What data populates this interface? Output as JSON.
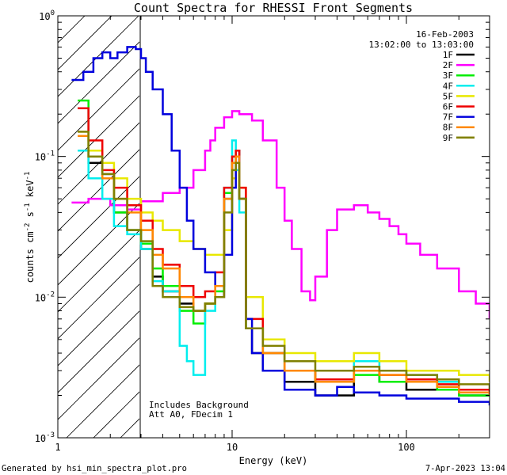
{
  "chart_data": {
    "type": "line",
    "title": "Count Spectra for RHESSI Front Segments",
    "xlabel": "Energy (keV)",
    "ylabel": "counts cm",
    "ylabel_exp1": "-2",
    "ylabel_mid": " s",
    "ylabel_exp2": "-1",
    "ylabel_end": " keV",
    "ylabel_exp3": "-1",
    "x_scale": "log",
    "y_scale": "log",
    "xlim": [
      1,
      300
    ],
    "ylim": [
      0.001,
      1
    ],
    "x_ticks": [
      {
        "value": 1,
        "label": "1"
      },
      {
        "value": 10,
        "label": "10"
      },
      {
        "value": 100,
        "label": "100"
      }
    ],
    "y_ticks": [
      {
        "value": 1,
        "base": "10",
        "exp": "0"
      },
      {
        "value": 0.1,
        "base": "10",
        "exp": "-1"
      },
      {
        "value": 0.01,
        "base": "10",
        "exp": "-2"
      },
      {
        "value": 0.001,
        "base": "10",
        "exp": "-3"
      }
    ],
    "shaded_region": {
      "from": 1,
      "to": 3,
      "pattern": "diagonal-hatch"
    },
    "date": "16-Feb-2003",
    "time_range": "13:02:00 to 13:03:00",
    "annotations": [
      "Includes Background",
      "Att A0, FDecim 1"
    ],
    "legend_position": "top-right",
    "series": [
      {
        "name": "1F",
        "color": "#000000",
        "x": [
          1.3,
          1.5,
          1.8,
          2.1,
          2.5,
          3.0,
          3.5,
          4.0,
          5.0,
          6.0,
          7.0,
          8.0,
          9.0,
          10.0,
          10.5,
          11.0,
          12.0,
          13.0,
          15.0,
          20.0,
          30.0,
          50.0,
          70.0,
          100.0,
          150.0,
          200.0,
          300.0
        ],
        "y": [
          0.22,
          0.09,
          0.075,
          0.04,
          0.03,
          0.022,
          0.014,
          0.011,
          0.009,
          0.008,
          0.009,
          0.01,
          0.05,
          0.09,
          0.11,
          0.05,
          0.006,
          0.004,
          0.003,
          0.0025,
          0.002,
          0.003,
          0.0025,
          0.0022,
          0.0022,
          0.002,
          0.002
        ]
      },
      {
        "name": "2F",
        "color": "#ff00ff",
        "x": [
          1.2,
          1.5,
          2.0,
          2.5,
          3.0,
          4.0,
          5.0,
          6.0,
          7.0,
          7.5,
          8.0,
          9.0,
          10.0,
          11.0,
          12.0,
          13.0,
          15.0,
          18.0,
          20.0,
          22.0,
          25.0,
          28.0,
          30.0,
          35.0,
          40.0,
          50.0,
          60.0,
          70.0,
          80.0,
          90.0,
          100.0,
          120.0,
          150.0,
          200.0,
          250.0,
          300.0
        ],
        "y": [
          0.047,
          0.05,
          0.045,
          0.042,
          0.048,
          0.055,
          0.06,
          0.08,
          0.11,
          0.13,
          0.16,
          0.19,
          0.21,
          0.2,
          0.2,
          0.18,
          0.13,
          0.06,
          0.035,
          0.022,
          0.011,
          0.0095,
          0.014,
          0.03,
          0.042,
          0.045,
          0.04,
          0.036,
          0.032,
          0.028,
          0.024,
          0.02,
          0.016,
          0.011,
          0.009,
          0.007
        ]
      },
      {
        "name": "3F",
        "color": "#00ee00",
        "x": [
          1.3,
          1.5,
          1.8,
          2.1,
          2.5,
          3.0,
          3.5,
          4.0,
          5.0,
          6.0,
          7.0,
          8.0,
          9.0,
          10.0,
          10.5,
          11.0,
          12.0,
          15.0,
          20.0,
          30.0,
          50.0,
          70.0,
          100.0,
          150.0,
          200.0,
          300.0
        ],
        "y": [
          0.25,
          0.1,
          0.07,
          0.04,
          0.03,
          0.024,
          0.016,
          0.012,
          0.008,
          0.0065,
          0.009,
          0.011,
          0.055,
          0.1,
          0.09,
          0.05,
          0.006,
          0.004,
          0.003,
          0.0025,
          0.0028,
          0.0025,
          0.0025,
          0.0022,
          0.002,
          0.0022
        ]
      },
      {
        "name": "4F",
        "color": "#00eeee",
        "x": [
          1.3,
          1.5,
          1.8,
          2.1,
          2.5,
          3.0,
          3.5,
          4.0,
          5.0,
          5.5,
          6.0,
          7.0,
          8.0,
          9.0,
          10.0,
          10.5,
          11.0,
          12.0,
          15.0,
          20.0,
          30.0,
          50.0,
          70.0,
          100.0,
          150.0,
          200.0,
          300.0
        ],
        "y": [
          0.11,
          0.07,
          0.05,
          0.032,
          0.028,
          0.022,
          0.013,
          0.011,
          0.0045,
          0.0035,
          0.0028,
          0.008,
          0.012,
          0.06,
          0.13,
          0.08,
          0.04,
          0.006,
          0.004,
          0.003,
          0.003,
          0.0035,
          0.003,
          0.0028,
          0.0025,
          0.0022,
          0.002
        ]
      },
      {
        "name": "5F",
        "color": "#e8e800",
        "x": [
          1.3,
          1.5,
          1.8,
          2.1,
          2.5,
          3.0,
          3.5,
          4.0,
          5.0,
          6.0,
          7.0,
          8.0,
          9.0,
          10.0,
          10.5,
          11.0,
          12.0,
          15.0,
          20.0,
          30.0,
          50.0,
          70.0,
          100.0,
          150.0,
          200.0,
          300.0
        ],
        "y": [
          0.15,
          0.11,
          0.09,
          0.07,
          0.05,
          0.04,
          0.035,
          0.03,
          0.025,
          0.022,
          0.02,
          0.02,
          0.03,
          0.07,
          0.09,
          0.06,
          0.01,
          0.005,
          0.004,
          0.0035,
          0.004,
          0.0035,
          0.003,
          0.003,
          0.0028,
          0.0025
        ]
      },
      {
        "name": "6F",
        "color": "#ee0000",
        "x": [
          1.3,
          1.5,
          1.8,
          2.1,
          2.5,
          3.0,
          3.5,
          4.0,
          5.0,
          6.0,
          7.0,
          8.0,
          9.0,
          10.0,
          10.5,
          11.0,
          12.0,
          15.0,
          20.0,
          30.0,
          50.0,
          70.0,
          100.0,
          150.0,
          200.0,
          300.0
        ],
        "y": [
          0.22,
          0.13,
          0.08,
          0.06,
          0.045,
          0.035,
          0.022,
          0.017,
          0.012,
          0.01,
          0.011,
          0.015,
          0.06,
          0.1,
          0.11,
          0.06,
          0.007,
          0.004,
          0.003,
          0.0026,
          0.003,
          0.0028,
          0.0026,
          0.0024,
          0.0022,
          0.002
        ]
      },
      {
        "name": "7F",
        "color": "#0000dd",
        "x": [
          1.2,
          1.4,
          1.6,
          1.8,
          2.0,
          2.2,
          2.5,
          2.8,
          3.0,
          3.2,
          3.5,
          4.0,
          4.5,
          5.0,
          5.5,
          6.0,
          7.0,
          8.0,
          9.0,
          10.0,
          10.5,
          11.0,
          12.0,
          13.0,
          15.0,
          20.0,
          30.0,
          40.0,
          50.0,
          70.0,
          100.0,
          150.0,
          200.0,
          300.0
        ],
        "y": [
          0.35,
          0.4,
          0.5,
          0.55,
          0.5,
          0.55,
          0.6,
          0.58,
          0.5,
          0.4,
          0.3,
          0.2,
          0.11,
          0.06,
          0.035,
          0.022,
          0.015,
          0.012,
          0.02,
          0.06,
          0.1,
          0.05,
          0.007,
          0.004,
          0.003,
          0.0022,
          0.002,
          0.0023,
          0.0021,
          0.002,
          0.0019,
          0.0019,
          0.0018,
          0.0017
        ]
      },
      {
        "name": "8F",
        "color": "#ff8800",
        "x": [
          1.3,
          1.5,
          1.8,
          2.1,
          2.5,
          3.0,
          3.5,
          4.0,
          5.0,
          6.0,
          7.0,
          8.0,
          9.0,
          10.0,
          10.5,
          11.0,
          12.0,
          15.0,
          20.0,
          30.0,
          50.0,
          70.0,
          100.0,
          150.0,
          200.0,
          300.0
        ],
        "y": [
          0.14,
          0.1,
          0.07,
          0.05,
          0.04,
          0.03,
          0.02,
          0.016,
          0.01,
          0.008,
          0.009,
          0.012,
          0.05,
          0.09,
          0.1,
          0.05,
          0.006,
          0.004,
          0.003,
          0.0025,
          0.003,
          0.0028,
          0.0025,
          0.0023,
          0.0021,
          0.002
        ]
      },
      {
        "name": "9F",
        "color": "#808000",
        "x": [
          1.3,
          1.5,
          1.8,
          2.1,
          2.5,
          3.0,
          3.5,
          4.0,
          5.0,
          6.0,
          7.0,
          8.0,
          9.0,
          10.0,
          10.5,
          11.0,
          12.0,
          15.0,
          20.0,
          30.0,
          50.0,
          70.0,
          100.0,
          150.0,
          200.0,
          300.0
        ],
        "y": [
          0.15,
          0.1,
          0.075,
          0.05,
          0.03,
          0.025,
          0.012,
          0.01,
          0.0085,
          0.008,
          0.009,
          0.01,
          0.04,
          0.08,
          0.09,
          0.05,
          0.006,
          0.0045,
          0.0035,
          0.003,
          0.0032,
          0.003,
          0.0028,
          0.0026,
          0.0024,
          0.0022
        ]
      }
    ]
  },
  "footer": {
    "generated_by": "Generated by hsi_min_spectra_plot.pro",
    "timestamp": "7-Apr-2023 13:04"
  }
}
